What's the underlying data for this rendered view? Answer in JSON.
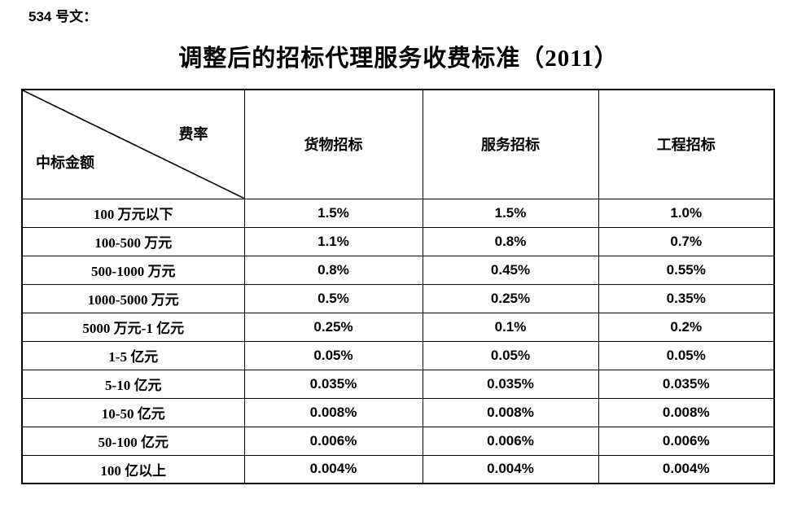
{
  "page": {
    "doc_label": "534 号文：",
    "title": "调整后的招标代理服务收费标准（2011）"
  },
  "table": {
    "corner": {
      "top_right": "费率",
      "bottom_left": "中标金额"
    },
    "columns": [
      "货物招标",
      "服务招标",
      "工程招标"
    ],
    "rows": [
      {
        "label": "100 万元以下",
        "values": [
          "1.5%",
          "1.5%",
          "1.0%"
        ]
      },
      {
        "label": "100-500 万元",
        "values": [
          "1.1%",
          "0.8%",
          "0.7%"
        ]
      },
      {
        "label": "500-1000 万元",
        "values": [
          "0.8%",
          "0.45%",
          "0.55%"
        ]
      },
      {
        "label": "1000-5000 万元",
        "values": [
          "0.5%",
          "0.25%",
          "0.35%"
        ]
      },
      {
        "label": "5000 万元-1 亿元",
        "values": [
          "0.25%",
          "0.1%",
          "0.2%"
        ]
      },
      {
        "label": "1-5 亿元",
        "values": [
          "0.05%",
          "0.05%",
          "0.05%"
        ]
      },
      {
        "label": "5-10 亿元",
        "values": [
          "0.035%",
          "0.035%",
          "0.035%"
        ]
      },
      {
        "label": "10-50 亿元",
        "values": [
          "0.008%",
          "0.008%",
          "0.008%"
        ]
      },
      {
        "label": "50-100 亿元",
        "values": [
          "0.006%",
          "0.006%",
          "0.006%"
        ]
      },
      {
        "label": "100 亿以上",
        "values": [
          "0.004%",
          "0.004%",
          "0.004%"
        ]
      }
    ]
  },
  "colors": {
    "text": "#000000",
    "background": "#ffffff",
    "border": "#000000"
  }
}
